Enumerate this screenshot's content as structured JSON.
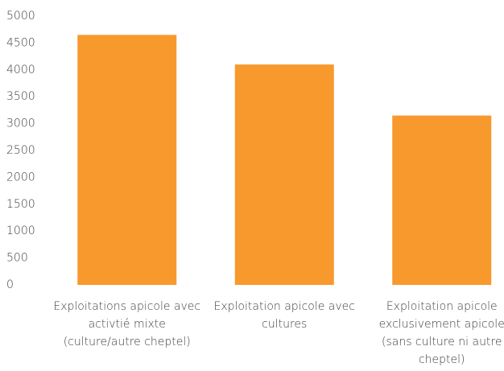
{
  "chart_data": {
    "type": "bar",
    "categories": [
      "Exploitations apicole avec activtié mixte (culture/autre cheptel)",
      "Exploitation apicole avec cultures",
      "Exploitation apicole exclusivement apicole (sans culture ni autre cheptel)"
    ],
    "values": [
      4650,
      4100,
      3150
    ],
    "color": "#f7992d",
    "ylim": [
      0,
      5000
    ],
    "yticks": [
      0,
      500,
      1000,
      1500,
      2000,
      2500,
      3000,
      3500,
      4000,
      4500,
      5000
    ],
    "grid": false
  }
}
